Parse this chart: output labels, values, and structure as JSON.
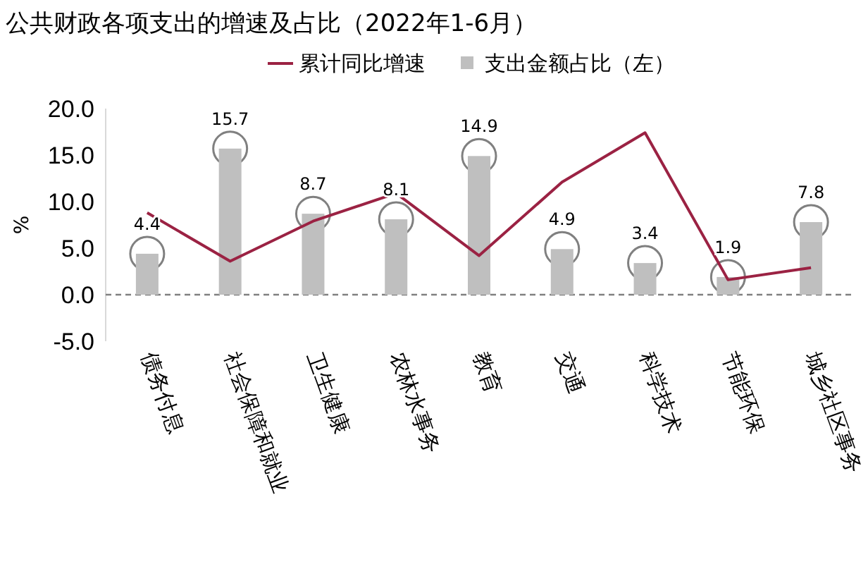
{
  "chart_data": {
    "type": "bar",
    "title": "公共财政各项支出的增速及占比（2022年1-6月）",
    "ylabel": "%",
    "categories": [
      "债务付息",
      "社会保障和就业",
      "卫生健康",
      "农林水事务",
      "教育",
      "交通",
      "科学技术",
      "节能环保",
      "城乡社区事务"
    ],
    "series": [
      {
        "name": "累计同比增速",
        "type": "line",
        "color": "#9b2243",
        "values": [
          8.8,
          3.6,
          7.9,
          10.9,
          4.2,
          12.1,
          17.4,
          1.6,
          2.9
        ]
      },
      {
        "name": "支出金额占比（左）",
        "color": "#bfbfbf",
        "values": [
          4.4,
          15.7,
          8.7,
          8.1,
          14.9,
          4.9,
          3.4,
          1.9,
          7.8
        ],
        "value_labels": [
          "4.4",
          "15.7",
          "8.7",
          "8.1",
          "14.9",
          "4.9",
          "3.4",
          "1.9",
          "7.8"
        ]
      }
    ],
    "ylim": [
      -5,
      20
    ],
    "yticks": [
      {
        "value": -5,
        "label": "-5.0"
      },
      {
        "value": 0,
        "label": "0.0"
      },
      {
        "value": 5,
        "label": "5.0"
      },
      {
        "value": 10,
        "label": "10.0"
      },
      {
        "value": 15,
        "label": "15.0"
      },
      {
        "value": 20,
        "label": "20.0"
      }
    ],
    "ref_lines": [
      {
        "axis": "y",
        "value": 0,
        "color": "#808080",
        "line_style": "dashed"
      }
    ],
    "legend": "top",
    "grid": false
  }
}
